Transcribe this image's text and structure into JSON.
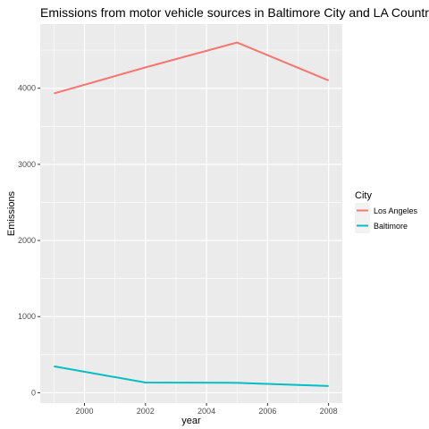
{
  "chart_data": {
    "type": "line",
    "title": "Emissions from motor vehicle sources in Baltimore City and LA Country",
    "xlabel": "year",
    "ylabel": "Emissions",
    "x": [
      1999,
      2002,
      2005,
      2008
    ],
    "series": [
      {
        "name": "Los Angeles",
        "color": "#F8766D",
        "values": [
          3931,
          4274,
          4601,
          4101
        ]
      },
      {
        "name": "Baltimore",
        "color": "#00BFC4",
        "values": [
          347,
          134,
          130,
          89
        ]
      }
    ],
    "xticks": [
      2000,
      2002,
      2004,
      2006,
      2008
    ],
    "xtick_labels": [
      "2000",
      "2002",
      "2004",
      "2006",
      "2008"
    ],
    "yticks": [
      0,
      1000,
      2000,
      3000,
      4000
    ],
    "ytick_labels": [
      "0",
      "1000",
      "2000",
      "3000",
      "4000"
    ],
    "xlim": [
      1998.55,
      2008.45
    ],
    "ylim": [
      -136,
      4842
    ],
    "legend": {
      "title": "City",
      "placement": "right"
    },
    "grid": true,
    "panel_background": "#EBEBEB"
  }
}
